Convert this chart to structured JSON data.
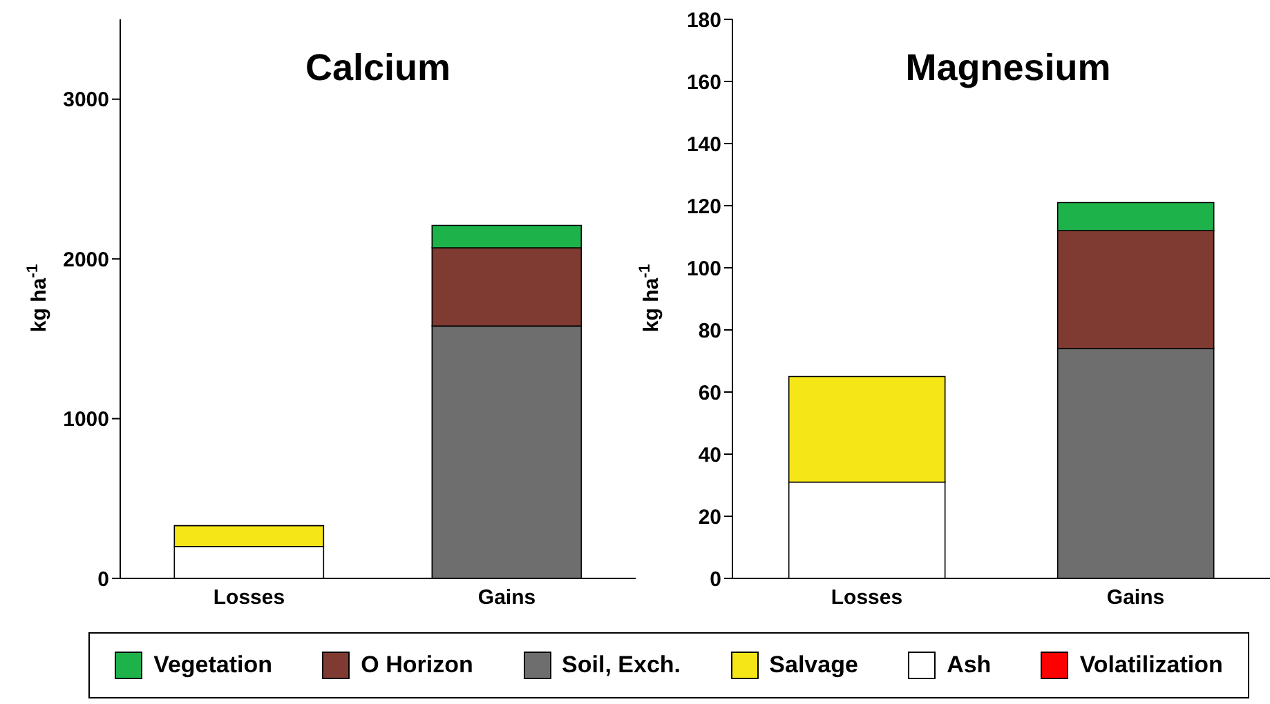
{
  "chart_data": [
    {
      "type": "bar",
      "title": "Calcium",
      "ylabel": "kg ha$^{-1}$",
      "categories": [
        "Losses",
        "Gains"
      ],
      "stacked": true,
      "ylim": [
        0,
        3500
      ],
      "yticks": [
        0,
        1000,
        2000,
        3000
      ],
      "grid": false,
      "legend": "bottom",
      "series": [
        {
          "name": "Volatilization",
          "color": "#ff0000",
          "values": [
            null,
            null
          ]
        },
        {
          "name": "Ash",
          "color": "#ffffff",
          "values": [
            200,
            null
          ]
        },
        {
          "name": "Salvage",
          "color": "#f5e617",
          "values": [
            130,
            null
          ]
        },
        {
          "name": "Soil, Exch.",
          "color": "#6e6e6e",
          "values": [
            null,
            1580
          ]
        },
        {
          "name": "O Horizon",
          "color": "#7f3b32",
          "values": [
            null,
            490
          ]
        },
        {
          "name": "Vegetation",
          "color": "#1db34a",
          "values": [
            null,
            140
          ]
        }
      ]
    },
    {
      "type": "bar",
      "title": "Magnesium",
      "ylabel": "kg ha$^{-1}$",
      "categories": [
        "Losses",
        "Gains"
      ],
      "stacked": true,
      "ylim": [
        0,
        180
      ],
      "yticks": [
        0,
        20,
        40,
        60,
        80,
        100,
        120,
        140,
        160,
        180
      ],
      "grid": false,
      "series": [
        {
          "color": "#ff0000",
          "values": [
            null,
            null
          ]
        },
        {
          "color": "#ffffff",
          "values": [
            31,
            null
          ]
        },
        {
          "color": "#f5e617",
          "values": [
            34,
            null
          ]
        },
        {
          "color": "#6e6e6e",
          "values": [
            null,
            74
          ]
        },
        {
          "color": "#7f3b32",
          "values": [
            null,
            38
          ]
        },
        {
          "color": "#1db34a",
          "values": [
            null,
            9
          ]
        }
      ]
    }
  ]
}
